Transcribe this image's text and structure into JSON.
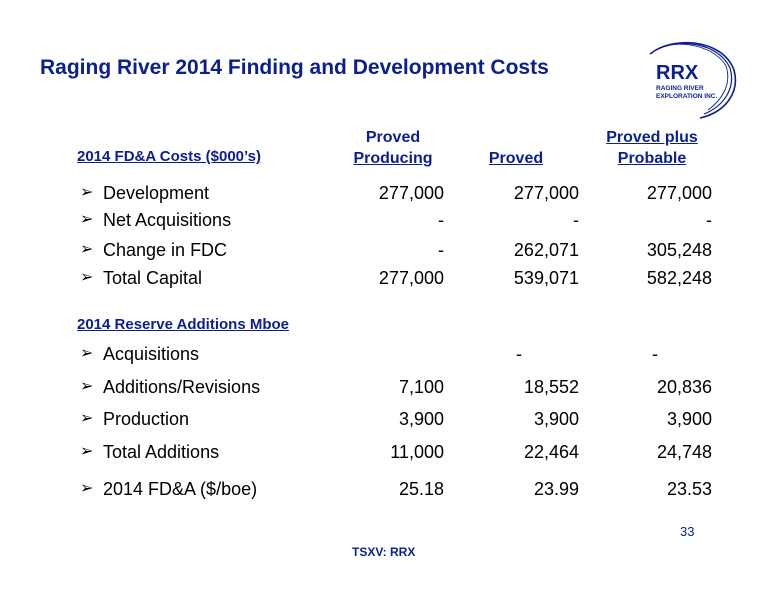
{
  "title": "Raging River 2014 Finding and Development Costs",
  "logo": {
    "main": "RRX",
    "sub_line1": "RAGING RIVER",
    "sub_line2": "EXPLORATION INC.",
    "color": "#0b1f8f"
  },
  "fda_section": {
    "header": "2014 FD&A Costs ($000’s)",
    "columns": [
      {
        "line1": "Proved",
        "line2": "Producing"
      },
      {
        "line1": "",
        "line2": "Proved"
      },
      {
        "line1": "Proved plus",
        "line2": "Probable"
      }
    ],
    "rows": [
      {
        "label": "Development",
        "v1": "277,000",
        "v2": "277,000",
        "v3": "277,000"
      },
      {
        "label": "Net Acquisitions",
        "v1": "-",
        "v2": "-",
        "v3": "-"
      },
      {
        "label": "Change in FDC",
        "v1": "-",
        "v2": "262,071",
        "v3": "305,248"
      },
      {
        "label": "Total Capital",
        "v1": "277,000",
        "v2": "539,071",
        "v3": "582,248"
      }
    ]
  },
  "reserve_section": {
    "header": "2014 Reserve Additions Mboe",
    "rows": [
      {
        "label": "Acquisitions",
        "v1": "",
        "v2": "-",
        "v3": "-"
      },
      {
        "label": "Additions/Revisions",
        "v1": "7,100",
        "v2": "18,552",
        "v3": "20,836"
      },
      {
        "label": "Production",
        "v1": "3,900",
        "v2": "3,900",
        "v3": "3,900"
      },
      {
        "label": "Total Additions",
        "v1": "11,000",
        "v2": "22,464",
        "v3": "24,748"
      },
      {
        "label": "2014 FD&A ($/boe)",
        "v1": "25.18",
        "v2": "23.99",
        "v3": "23.53"
      }
    ]
  },
  "bullet": "➢",
  "page_number": "33",
  "footer": "TSXV: RRX",
  "colors": {
    "accent": "#0b1f8f",
    "text": "#000000",
    "background": "#ffffff"
  }
}
